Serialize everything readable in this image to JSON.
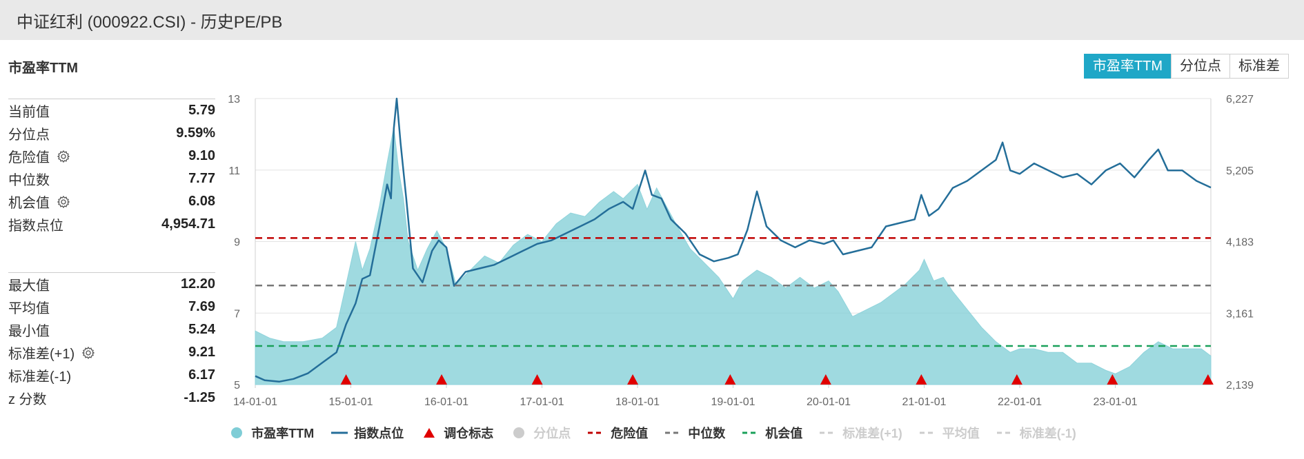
{
  "header": {
    "title": "中证红利 (000922.CSI) - 历史PE/PB"
  },
  "section_title": "市盈率TTM",
  "buttons": [
    {
      "label": "市盈率TTM",
      "active": true
    },
    {
      "label": "分位点",
      "active": false
    },
    {
      "label": "标准差",
      "active": false
    }
  ],
  "stats_top": [
    {
      "label": "当前值",
      "value": "5.79",
      "gear": false
    },
    {
      "label": "分位点",
      "value": "9.59%",
      "gear": false
    },
    {
      "label": "危险值",
      "value": "9.10",
      "gear": true
    },
    {
      "label": "中位数",
      "value": "7.77",
      "gear": false
    },
    {
      "label": "机会值",
      "value": "6.08",
      "gear": true
    },
    {
      "label": "指数点位",
      "value": "4,954.71",
      "gear": false
    }
  ],
  "stats_bottom": [
    {
      "label": "最大值",
      "value": "12.20",
      "gear": false
    },
    {
      "label": "平均值",
      "value": "7.69",
      "gear": false
    },
    {
      "label": "最小值",
      "value": "5.24",
      "gear": false
    },
    {
      "label": "标准差(+1)",
      "value": "9.21",
      "gear": true
    },
    {
      "label": "标准差(-1)",
      "value": "6.17",
      "gear": false
    },
    {
      "label": "z 分数",
      "value": "-1.25",
      "gear": false
    }
  ],
  "legend": [
    {
      "label": "市盈率TTM",
      "icon": "circle",
      "color": "#7fcdd6",
      "on": true
    },
    {
      "label": "指数点位",
      "icon": "line",
      "color": "#246e99",
      "on": true
    },
    {
      "label": "调仓标志",
      "icon": "triangle",
      "color": "#e00000",
      "on": true
    },
    {
      "label": "分位点",
      "icon": "circle",
      "color": "#cccccc",
      "on": false
    },
    {
      "label": "危险值",
      "icon": "dash",
      "color": "#c00000",
      "on": true
    },
    {
      "label": "中位数",
      "icon": "dash",
      "color": "#777777",
      "on": true
    },
    {
      "label": "机会值",
      "icon": "dash",
      "color": "#1aa05a",
      "on": true
    },
    {
      "label": "标准差(+1)",
      "icon": "dash",
      "color": "#cccccc",
      "on": false
    },
    {
      "label": "平均值",
      "icon": "dash",
      "color": "#cccccc",
      "on": false
    },
    {
      "label": "标准差(-1)",
      "icon": "dash",
      "color": "#cccccc",
      "on": false
    }
  ],
  "chart_data": {
    "type": "area",
    "x_ticks": [
      "14-01-01",
      "15-01-01",
      "16-01-01",
      "17-01-01",
      "18-01-01",
      "19-01-01",
      "20-01-01",
      "21-01-01",
      "22-01-01",
      "23-01-01"
    ],
    "x_range": [
      2014.0,
      2024.0
    ],
    "y_left": {
      "ticks": [
        "5",
        "7",
        "9",
        "11",
        "13"
      ],
      "range": [
        5,
        13
      ]
    },
    "y_right": {
      "ticks": [
        "2,139",
        "3,161",
        "4,183",
        "5,205",
        "6,227"
      ],
      "range": [
        2139,
        6227
      ]
    },
    "reference_lines": [
      {
        "name": "危险值",
        "value": 9.1,
        "color": "#c00000"
      },
      {
        "name": "中位数",
        "value": 7.77,
        "color": "#777777"
      },
      {
        "name": "机会值",
        "value": 6.08,
        "color": "#1aa05a"
      }
    ],
    "rebalance_markers": [
      2014.95,
      2015.95,
      2016.95,
      2017.95,
      2018.97,
      2019.97,
      2020.97,
      2021.97,
      2022.97,
      2023.97
    ],
    "series": [
      {
        "name": "市盈率TTM",
        "axis": "left",
        "color": "#7fcdd6",
        "points": [
          [
            2014.0,
            6.5
          ],
          [
            2014.15,
            6.3
          ],
          [
            2014.3,
            6.2
          ],
          [
            2014.5,
            6.2
          ],
          [
            2014.7,
            6.3
          ],
          [
            2014.85,
            6.6
          ],
          [
            2014.95,
            7.8
          ],
          [
            2015.05,
            9.0
          ],
          [
            2015.12,
            8.2
          ],
          [
            2015.2,
            8.8
          ],
          [
            2015.3,
            10.0
          ],
          [
            2015.38,
            11.2
          ],
          [
            2015.45,
            12.2
          ],
          [
            2015.5,
            11.0
          ],
          [
            2015.55,
            10.2
          ],
          [
            2015.6,
            9.0
          ],
          [
            2015.7,
            8.2
          ],
          [
            2015.8,
            8.8
          ],
          [
            2015.9,
            9.3
          ],
          [
            2016.0,
            8.8
          ],
          [
            2016.1,
            7.8
          ],
          [
            2016.25,
            8.2
          ],
          [
            2016.4,
            8.6
          ],
          [
            2016.55,
            8.4
          ],
          [
            2016.7,
            8.9
          ],
          [
            2016.85,
            9.2
          ],
          [
            2017.0,
            9.0
          ],
          [
            2017.15,
            9.5
          ],
          [
            2017.3,
            9.8
          ],
          [
            2017.45,
            9.7
          ],
          [
            2017.6,
            10.1
          ],
          [
            2017.75,
            10.4
          ],
          [
            2017.85,
            10.2
          ],
          [
            2018.0,
            10.6
          ],
          [
            2018.1,
            9.9
          ],
          [
            2018.2,
            10.5
          ],
          [
            2018.3,
            10.0
          ],
          [
            2018.4,
            9.5
          ],
          [
            2018.55,
            8.8
          ],
          [
            2018.7,
            8.4
          ],
          [
            2018.85,
            8.0
          ],
          [
            2019.0,
            7.4
          ],
          [
            2019.1,
            7.9
          ],
          [
            2019.25,
            8.2
          ],
          [
            2019.4,
            8.0
          ],
          [
            2019.55,
            7.7
          ],
          [
            2019.7,
            8.0
          ],
          [
            2019.85,
            7.7
          ],
          [
            2020.0,
            7.9
          ],
          [
            2020.1,
            7.6
          ],
          [
            2020.25,
            6.9
          ],
          [
            2020.4,
            7.1
          ],
          [
            2020.55,
            7.3
          ],
          [
            2020.7,
            7.6
          ],
          [
            2020.8,
            7.8
          ],
          [
            2020.95,
            8.2
          ],
          [
            2021.0,
            8.5
          ],
          [
            2021.1,
            7.9
          ],
          [
            2021.2,
            8.0
          ],
          [
            2021.3,
            7.6
          ],
          [
            2021.45,
            7.1
          ],
          [
            2021.6,
            6.6
          ],
          [
            2021.75,
            6.2
          ],
          [
            2021.9,
            5.9
          ],
          [
            2022.0,
            6.0
          ],
          [
            2022.15,
            6.0
          ],
          [
            2022.3,
            5.9
          ],
          [
            2022.45,
            5.9
          ],
          [
            2022.6,
            5.6
          ],
          [
            2022.75,
            5.6
          ],
          [
            2022.9,
            5.4
          ],
          [
            2023.0,
            5.3
          ],
          [
            2023.15,
            5.5
          ],
          [
            2023.3,
            5.9
          ],
          [
            2023.45,
            6.2
          ],
          [
            2023.6,
            6.0
          ],
          [
            2023.75,
            6.0
          ],
          [
            2023.9,
            6.0
          ],
          [
            2024.0,
            5.8
          ]
        ]
      },
      {
        "name": "指数点位",
        "axis": "right",
        "color": "#246e99",
        "points": [
          [
            2014.0,
            2260
          ],
          [
            2014.1,
            2200
          ],
          [
            2014.25,
            2180
          ],
          [
            2014.4,
            2220
          ],
          [
            2014.55,
            2300
          ],
          [
            2014.7,
            2450
          ],
          [
            2014.85,
            2600
          ],
          [
            2014.95,
            3000
          ],
          [
            2015.05,
            3300
          ],
          [
            2015.12,
            3650
          ],
          [
            2015.2,
            3700
          ],
          [
            2015.3,
            4400
          ],
          [
            2015.38,
            5000
          ],
          [
            2015.42,
            4800
          ],
          [
            2015.45,
            5800
          ],
          [
            2015.48,
            6227
          ],
          [
            2015.52,
            5600
          ],
          [
            2015.58,
            4800
          ],
          [
            2015.65,
            3800
          ],
          [
            2015.75,
            3600
          ],
          [
            2015.85,
            4050
          ],
          [
            2015.92,
            4200
          ],
          [
            2016.0,
            4100
          ],
          [
            2016.08,
            3550
          ],
          [
            2016.2,
            3750
          ],
          [
            2016.35,
            3800
          ],
          [
            2016.5,
            3850
          ],
          [
            2016.65,
            3950
          ],
          [
            2016.8,
            4050
          ],
          [
            2016.95,
            4150
          ],
          [
            2017.1,
            4200
          ],
          [
            2017.25,
            4300
          ],
          [
            2017.4,
            4400
          ],
          [
            2017.55,
            4500
          ],
          [
            2017.7,
            4650
          ],
          [
            2017.85,
            4750
          ],
          [
            2017.95,
            4650
          ],
          [
            2018.08,
            5200
          ],
          [
            2018.15,
            4850
          ],
          [
            2018.25,
            4800
          ],
          [
            2018.35,
            4500
          ],
          [
            2018.5,
            4300
          ],
          [
            2018.65,
            4000
          ],
          [
            2018.8,
            3900
          ],
          [
            2018.95,
            3950
          ],
          [
            2019.05,
            4000
          ],
          [
            2019.15,
            4350
          ],
          [
            2019.25,
            4900
          ],
          [
            2019.35,
            4400
          ],
          [
            2019.5,
            4200
          ],
          [
            2019.65,
            4100
          ],
          [
            2019.8,
            4200
          ],
          [
            2019.95,
            4150
          ],
          [
            2020.05,
            4200
          ],
          [
            2020.15,
            4000
          ],
          [
            2020.3,
            4050
          ],
          [
            2020.45,
            4100
          ],
          [
            2020.6,
            4400
          ],
          [
            2020.75,
            4450
          ],
          [
            2020.9,
            4500
          ],
          [
            2020.97,
            4850
          ],
          [
            2021.05,
            4550
          ],
          [
            2021.15,
            4650
          ],
          [
            2021.3,
            4950
          ],
          [
            2021.45,
            5050
          ],
          [
            2021.6,
            5200
          ],
          [
            2021.75,
            5350
          ],
          [
            2021.82,
            5600
          ],
          [
            2021.9,
            5200
          ],
          [
            2022.0,
            5150
          ],
          [
            2022.15,
            5300
          ],
          [
            2022.3,
            5200
          ],
          [
            2022.45,
            5100
          ],
          [
            2022.6,
            5150
          ],
          [
            2022.75,
            5000
          ],
          [
            2022.9,
            5200
          ],
          [
            2023.05,
            5300
          ],
          [
            2023.2,
            5100
          ],
          [
            2023.35,
            5350
          ],
          [
            2023.45,
            5500
          ],
          [
            2023.55,
            5200
          ],
          [
            2023.7,
            5200
          ],
          [
            2023.85,
            5050
          ],
          [
            2024.0,
            4955
          ]
        ]
      }
    ]
  }
}
